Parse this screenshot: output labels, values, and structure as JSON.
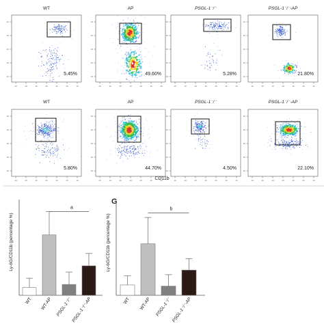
{
  "figure": {
    "panel_label": "G",
    "flow_xlabel": "CD11b"
  },
  "flow_rows": [
    {
      "plots": [
        {
          "title": "WT",
          "percent": "5.45%"
        },
        {
          "title": "AP",
          "percent": "49.60%"
        },
        {
          "title": "PSGL-1⁻/⁻",
          "percent": "5.28%"
        },
        {
          "title": "PSGL-1⁻/⁻-AP",
          "percent": "21.80%"
        }
      ]
    },
    {
      "plots": [
        {
          "title": "WT",
          "percent": "5.80%"
        },
        {
          "title": "AP",
          "percent": "44.70%"
        },
        {
          "title": "PSGL-1⁻/⁻",
          "percent": "4.50%"
        },
        {
          "title": "PSGL-1⁻/⁻-AP",
          "percent": "22.10%"
        }
      ]
    }
  ],
  "chart_data": [
    {
      "type": "bar",
      "categories": [
        "WT",
        "WT-AP",
        "PSGL-1⁻/⁻",
        "PSGL-1⁻/⁻-AP"
      ],
      "values": [
        5,
        39,
        7,
        19
      ],
      "errors": [
        6,
        15,
        8,
        8
      ],
      "colors": [
        "#ffffff",
        "#bfbfbf",
        "#808080",
        "#2b1a16"
      ],
      "ylabel": "Ly-6G/CD11b (percentage %)",
      "ylim": [
        0,
        60
      ],
      "annotation": "a"
    },
    {
      "type": "bar",
      "categories": [
        "WT",
        "WT-AP",
        "PSGL-1⁻/⁻",
        "PSGL-1⁻/⁻-AP"
      ],
      "values": [
        9,
        45,
        8,
        22
      ],
      "errors": [
        8,
        23,
        10,
        10
      ],
      "colors": [
        "#ffffff",
        "#bfbfbf",
        "#808080",
        "#2b1a16"
      ],
      "ylabel": "Ly-6G/CD11b (percentage %)",
      "ylim": [
        0,
        80
      ],
      "annotation": "b"
    }
  ]
}
